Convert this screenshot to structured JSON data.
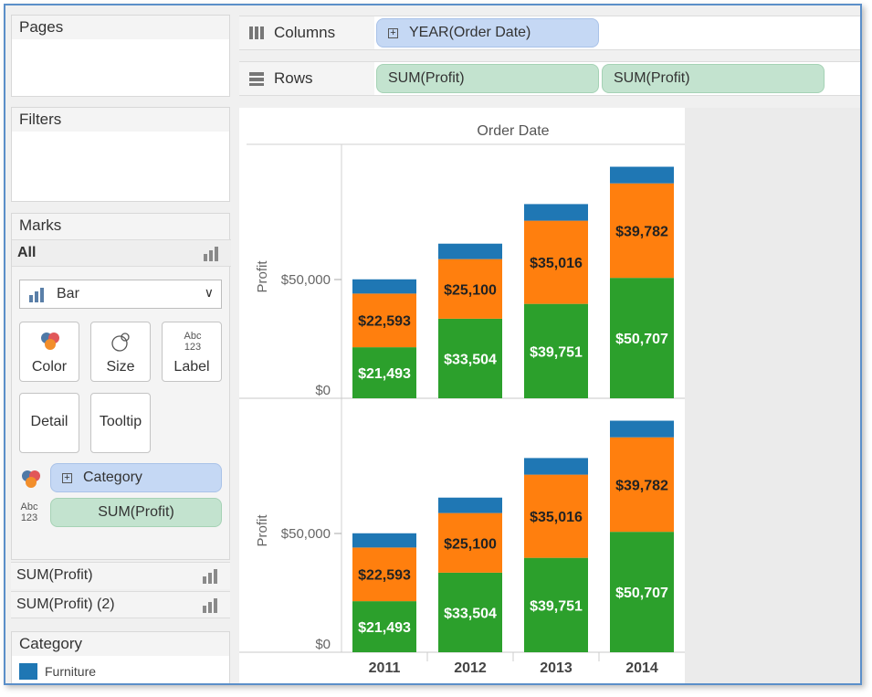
{
  "panes": {
    "pages_title": "Pages",
    "filters_title": "Filters",
    "marks_title": "Marks",
    "marks_all": "All",
    "mark_type": "Bar",
    "buttons": {
      "color": "Color",
      "size": "Size",
      "label": "Label",
      "detail": "Detail",
      "tooltip": "Tooltip"
    },
    "color_pill": "Category",
    "label_pill": "SUM(Profit)",
    "label_icon_text": "Abc\n123",
    "marks_sub1": "SUM(Profit)",
    "marks_sub2": "SUM(Profit) (2)",
    "legend_title": "Category",
    "legend_items": [
      {
        "label": "Furniture",
        "color": "#1f77b4"
      }
    ]
  },
  "shelves": {
    "columns_label": "Columns",
    "rows_label": "Rows",
    "columns_pill": "YEAR(Order Date)",
    "rows_pill_1": "SUM(Profit)",
    "rows_pill_2": "SUM(Profit)"
  },
  "chart_data": [
    {
      "type": "bar",
      "stacked": true,
      "title": "Order Date",
      "ylabel": "Profit",
      "y_ticks": [
        "$0",
        "$50,000"
      ],
      "categories": [
        "2011",
        "2012",
        "2013",
        "2014"
      ],
      "series": [
        {
          "color": "#2ca02c",
          "values": [
            21493,
            33504,
            39751,
            50707
          ],
          "labels": [
            "$21,493",
            "$33,504",
            "$39,751",
            "$50,707"
          ]
        },
        {
          "color": "#ff7f0e",
          "values": [
            22593,
            25100,
            35016,
            39782
          ],
          "labels": [
            "$22,593",
            "$25,100",
            "$35,016",
            "$39,782"
          ]
        },
        {
          "name": "Furniture",
          "color": "#1f77b4",
          "values": [
            6000,
            6500,
            7000,
            7000
          ]
        }
      ],
      "ylim": [
        0,
        100000
      ]
    },
    {
      "type": "bar",
      "stacked": true,
      "ylabel": "Profit",
      "y_ticks": [
        "$0",
        "$50,000"
      ],
      "categories": [
        "2011",
        "2012",
        "2013",
        "2014"
      ],
      "series": [
        {
          "color": "#2ca02c",
          "values": [
            21493,
            33504,
            39751,
            50707
          ],
          "labels": [
            "$21,493",
            "$33,504",
            "$39,751",
            "$50,707"
          ]
        },
        {
          "color": "#ff7f0e",
          "values": [
            22593,
            25100,
            35016,
            39782
          ],
          "labels": [
            "$22,593",
            "$25,100",
            "$35,016",
            "$39,782"
          ]
        },
        {
          "name": "Furniture",
          "color": "#1f77b4",
          "values": [
            6000,
            6500,
            7000,
            7000
          ]
        }
      ],
      "ylim": [
        0,
        100000
      ]
    }
  ]
}
